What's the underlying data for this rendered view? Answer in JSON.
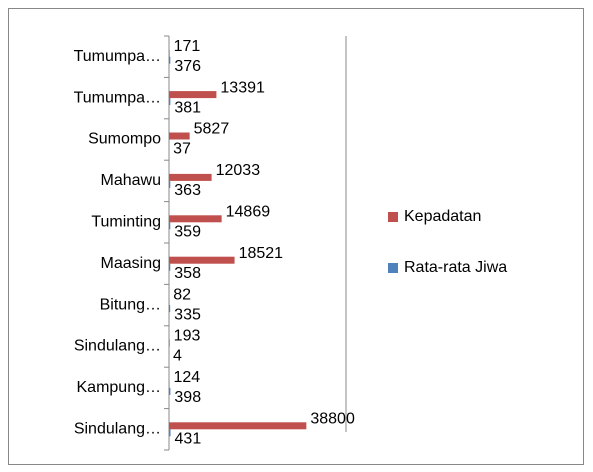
{
  "chart_data": {
    "type": "bar",
    "orientation": "horizontal",
    "categories": [
      "Tumumpa…",
      "Tumumpa…",
      "Sumompo",
      "Mahawu",
      "Tuminting",
      "Maasing",
      "Bitung…",
      "Sindulang…",
      "Kampung…",
      "Sindulang…"
    ],
    "series": [
      {
        "name": "Kepadatan",
        "color": "#c0504d",
        "values": [
          171,
          13391,
          5827,
          12033,
          14869,
          18521,
          82,
          193,
          124,
          38800
        ]
      },
      {
        "name": "Rata-rata Jiwa",
        "color": "#4f81bd",
        "values": [
          376,
          381,
          37,
          363,
          359,
          358,
          335,
          4,
          398,
          431
        ]
      }
    ],
    "xlim": [
      0,
      50000
    ],
    "legend": "right"
  }
}
